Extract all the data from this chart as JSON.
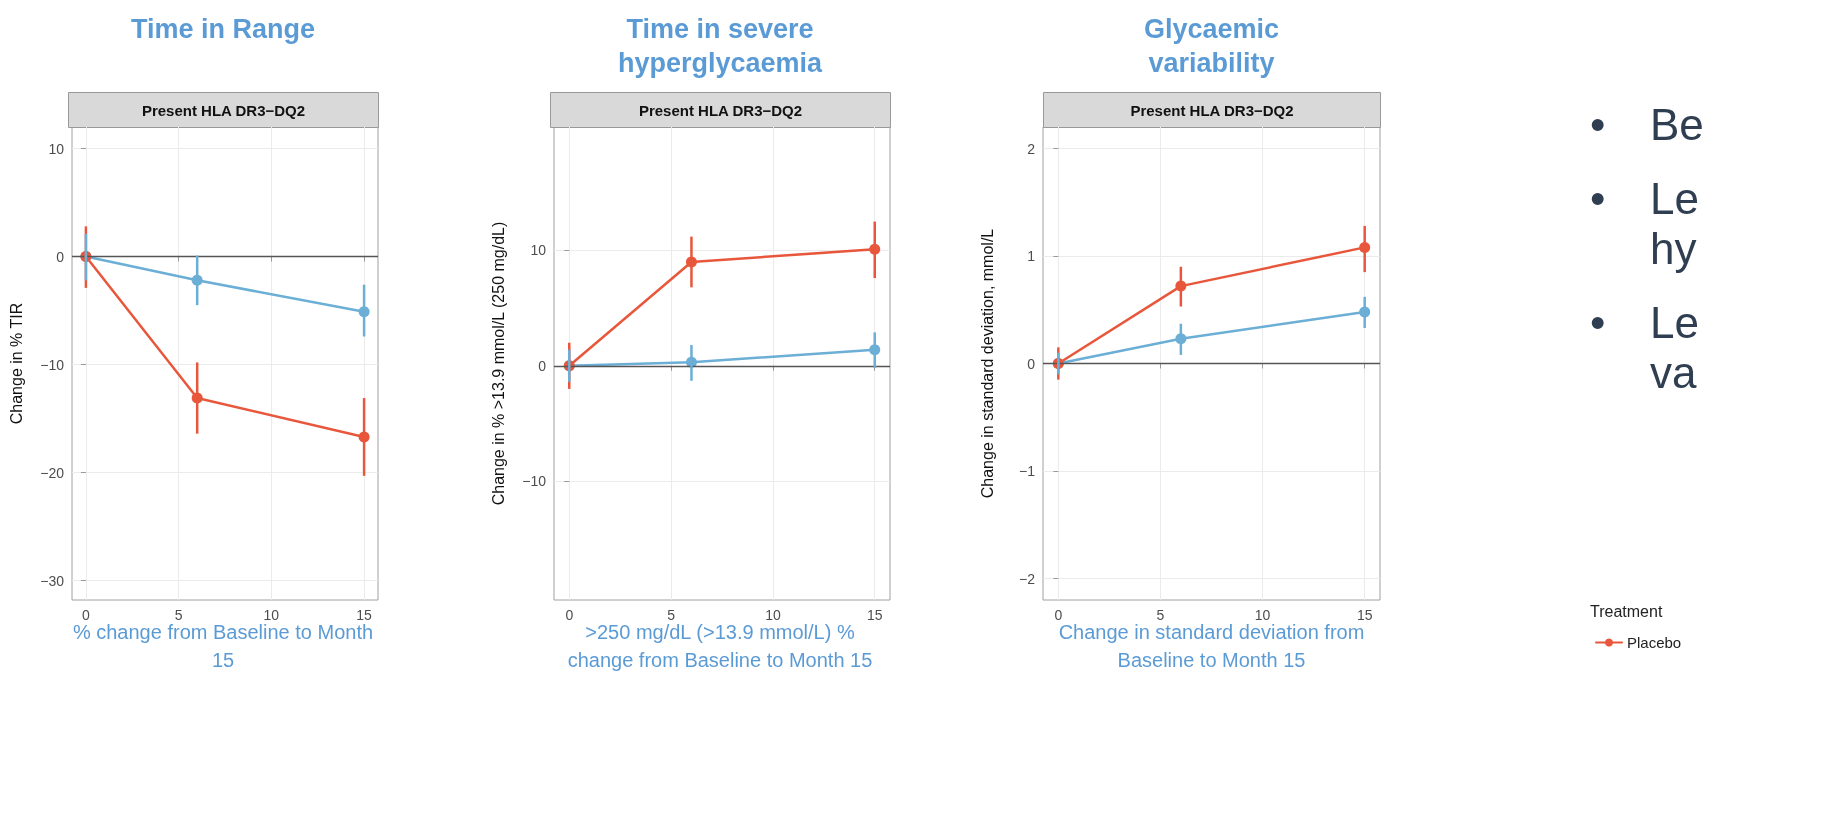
{
  "chart_data": [
    {
      "type": "line",
      "title": "Time in Range",
      "subtitle": "Present HLA DR3−DQ2",
      "xlabel": "% change from Baseline to Month 15",
      "ylabel": "Change in % TIR",
      "xlim": [
        -0.75,
        15.75
      ],
      "xticks": [
        0,
        5,
        10,
        15
      ],
      "ylim": [
        -31.8,
        12
      ],
      "yticks": [
        {
          "value": -30,
          "label": "−30"
        },
        {
          "value": -20,
          "label": "−20"
        },
        {
          "value": -10,
          "label": "−10"
        },
        0,
        10
      ],
      "grid": true,
      "marker": "circle",
      "x": [
        0,
        6,
        15
      ],
      "ref_lines": [
        {
          "axis": "y",
          "value": 0,
          "color": "#555555"
        }
      ],
      "series": [
        {
          "color": "#6baed6",
          "values": [
            0,
            -2.2,
            -5.1
          ],
          "errors": [
            [
              -2.2,
              2.1
            ],
            [
              -4.5,
              0.1
            ],
            [
              -7.4,
              -2.6
            ]
          ]
        },
        {
          "color": "#e8573b",
          "values": [
            0,
            -13.1,
            -16.7
          ],
          "errors": [
            [
              -2.9,
              2.8
            ],
            [
              -16.4,
              -9.8
            ],
            [
              -20.3,
              -13.1
            ]
          ]
        }
      ]
    },
    {
      "type": "line",
      "title": "Time in severe hyperglycaemia",
      "subtitle": "Present HLA DR3−DQ2",
      "xlabel": ">250 mg/dL (>13.9 mmol/L) % change from Baseline to Month 15",
      "ylabel": "Change in % >13.9 mmol/L (250 mg/dL)",
      "xlim": [
        -0.75,
        15.75
      ],
      "xticks": [
        0,
        5,
        10,
        15
      ],
      "ylim": [
        -20.3,
        20.7
      ],
      "yticks": [
        {
          "value": -10,
          "label": "−10"
        },
        0,
        10
      ],
      "grid": true,
      "marker": "circle",
      "x": [
        0,
        6,
        15
      ],
      "ref_lines": [
        {
          "axis": "y",
          "value": 0,
          "color": "#555555"
        }
      ],
      "series": [
        {
          "color": "#6baed6",
          "values": [
            0,
            0.3,
            1.4
          ],
          "errors": [
            [
              -1.4,
              1.4
            ],
            [
              -1.3,
              1.8
            ],
            [
              -0.2,
              2.9
            ]
          ]
        },
        {
          "color": "#e8573b",
          "values": [
            0,
            9.0,
            10.1
          ],
          "errors": [
            [
              -2.0,
              2.0
            ],
            [
              6.8,
              11.2
            ],
            [
              7.6,
              12.5
            ]
          ]
        }
      ]
    },
    {
      "type": "line",
      "title": "Glycaemic variability",
      "subtitle": "Present HLA DR3−DQ2",
      "xlabel": "Change in standard deviation from Baseline to Month 15",
      "ylabel": "Change in standard deviation, mmol/L",
      "xlim": [
        -0.75,
        15.75
      ],
      "xticks": [
        0,
        5,
        10,
        15
      ],
      "ylim": [
        -2.2,
        2.2
      ],
      "yticks": [
        {
          "value": -2,
          "label": "−2"
        },
        {
          "value": -1,
          "label": "−1"
        },
        0,
        1,
        2
      ],
      "grid": true,
      "marker": "circle",
      "x": [
        0,
        6,
        15
      ],
      "legend": "right",
      "legend_title": "Treatment",
      "ref_lines": [
        {
          "axis": "y",
          "value": 0,
          "color": "#555555"
        }
      ],
      "series": [
        {
          "color": "#6baed6",
          "values": [
            0,
            0.23,
            0.48
          ],
          "errors": [
            [
              -0.1,
              0.1
            ],
            [
              0.08,
              0.37
            ],
            [
              0.33,
              0.62
            ]
          ]
        },
        {
          "name": "Placebo",
          "color": "#e8573b",
          "values": [
            0,
            0.72,
            1.08
          ],
          "errors": [
            [
              -0.15,
              0.15
            ],
            [
              0.53,
              0.9
            ],
            [
              0.85,
              1.28
            ]
          ]
        }
      ]
    },
    {
      "type": "other",
      "annotations": [
        "•\tBe",
        "•\tLe\nhy",
        "•\tLe\nva"
      ]
    }
  ]
}
